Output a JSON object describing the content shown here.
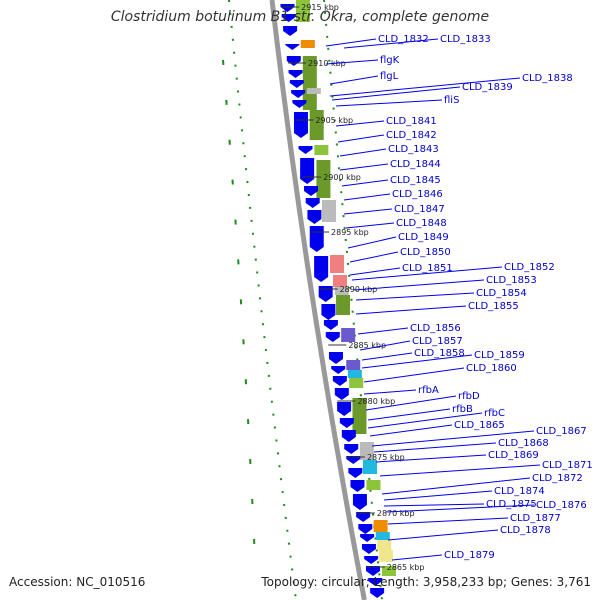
{
  "header": {
    "title": "Clostridium botulinum B1 str. Okra, complete genome"
  },
  "footer": {
    "accession": "Accession: NC_010516",
    "summary": "Topology: circular; Length: 3,958,233 bp; Genes: 3,761"
  },
  "colors": {
    "gene_arrow": "#0000ee",
    "label": "#0000cc",
    "backbone": "#999999",
    "gc_dots": "#1f8a1f",
    "cog_green": "#6b9a2a",
    "cog_light_green": "#8cc43c",
    "cog_gray": "#bbbbbb",
    "cog_pink": "#f08080",
    "cog_purple": "#6a5acd",
    "cog_cyan": "#22b8e0",
    "cog_orange": "#f08c00",
    "cog_yellow": "#f0e68c"
  },
  "kbp_ticks": [
    "2915 kbp",
    "2910 kbp",
    "2905 kbp",
    "2900 kbp",
    "2895 kbp",
    "2890 kbp",
    "2885 kbp",
    "2880 kbp",
    "2875 kbp",
    "2870 kbp",
    "2865 kbp"
  ],
  "genes": [
    "CLD_1832",
    "CLD_1833",
    "flgK",
    "flgL",
    "CLD_1838",
    "CLD_1839",
    "fliS",
    "CLD_1841",
    "CLD_1842",
    "CLD_1843",
    "CLD_1844",
    "CLD_1845",
    "CLD_1846",
    "CLD_1847",
    "CLD_1848",
    "CLD_1849",
    "CLD_1850",
    "CLD_1851",
    "CLD_1852",
    "CLD_1853",
    "CLD_1854",
    "CLD_1855",
    "CLD_1856",
    "CLD_1857",
    "CLD_1858",
    "CLD_1859",
    "CLD_1860",
    "rfbA",
    "rfbD",
    "rfbB",
    "rfbC",
    "CLD_1865",
    "CLD_1867",
    "CLD_1868",
    "CLD_1869",
    "CLD_1871",
    "CLD_1872",
    "CLD_1874",
    "CLD_1875",
    "CLD_1876",
    "CLD_1877",
    "CLD_1878",
    "CLD_1879"
  ]
}
